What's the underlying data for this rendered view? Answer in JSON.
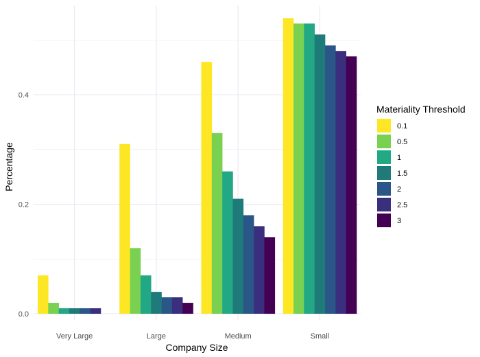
{
  "chart_data": {
    "type": "bar",
    "xlabel": "Company Size",
    "ylabel": "Percentage",
    "categories": [
      "Very Large",
      "Large",
      "Medium",
      "Small"
    ],
    "ylim": [
      0,
      0.56
    ],
    "yticks": [
      0.0,
      0.2,
      0.4
    ],
    "ytick_labels": [
      "0.0",
      "0.2",
      "0.4"
    ],
    "grid": true,
    "legend": {
      "title": "Materiality Threshold",
      "position": "right"
    },
    "series": [
      {
        "name": "0.1",
        "color": "#FDE725",
        "values": [
          0.07,
          0.31,
          0.46,
          0.54
        ]
      },
      {
        "name": "0.5",
        "color": "#7AD151",
        "values": [
          0.02,
          0.12,
          0.33,
          0.53
        ]
      },
      {
        "name": "1",
        "color": "#22A884",
        "values": [
          0.01,
          0.07,
          0.26,
          0.53
        ]
      },
      {
        "name": "1.5",
        "color": "#1F7A7A",
        "values": [
          0.01,
          0.04,
          0.21,
          0.51
        ]
      },
      {
        "name": "2",
        "color": "#2A5788",
        "values": [
          0.01,
          0.03,
          0.18,
          0.49
        ]
      },
      {
        "name": "2.5",
        "color": "#3A2E7E",
        "values": [
          0.01,
          0.03,
          0.16,
          0.48
        ]
      },
      {
        "name": "3",
        "color": "#440154",
        "values": [
          0.0,
          0.02,
          0.14,
          0.47
        ]
      }
    ]
  }
}
